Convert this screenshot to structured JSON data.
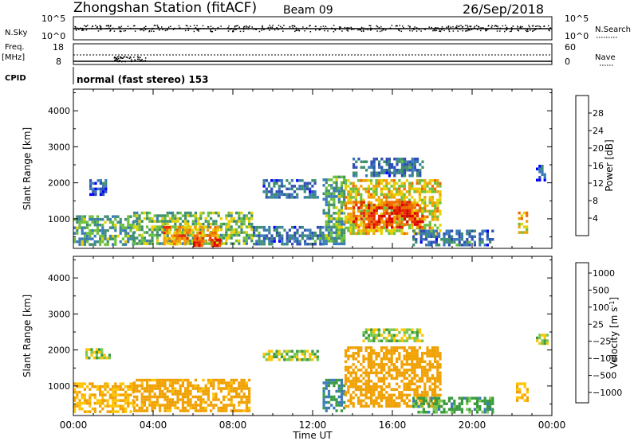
{
  "header": {
    "station": "Zhongshan Station (fitACF)",
    "beam": "Beam 09",
    "date": "26/Sep/2018"
  },
  "strip": {
    "nsky_label": "N.Sky",
    "nsky_ticks": [
      "10^5",
      "10^0"
    ],
    "nsearch_label": "N.Search",
    "nsearch_ticks": [
      "10^5",
      "10^0"
    ],
    "freq_label": "Freq.",
    "freq_unit": "[MHz]",
    "freq_ticks": [
      "18",
      "8"
    ],
    "nave_label": "Nave",
    "nave_ticks": [
      "60",
      "0"
    ],
    "cpid_label": "CPID",
    "cpid_text": "normal (fast stereo) 153"
  },
  "colors": {
    "power": [
      "#0000ff",
      "#2f4fb4",
      "#3a7ab8",
      "#3f8f6e",
      "#6cbf3c",
      "#e8d000",
      "#f0a000",
      "#ee6a00",
      "#e82800",
      "#dd0000"
    ],
    "velocity": [
      "#e80000",
      "#ee5a00",
      "#f0a000",
      "#ffc400",
      "#c8c8c8",
      "#7ac850",
      "#3a9a40",
      "#3a7ab8",
      "#2050b8",
      "#0000dd"
    ]
  },
  "chart_data": [
    {
      "type": "heatmap",
      "name": "power",
      "ylabel": "Slant Range [km]",
      "ylim": [
        180,
        4600
      ],
      "yticks": [
        1000,
        2000,
        3000,
        4000
      ],
      "xticks": [
        "00:00",
        "04:00",
        "08:00",
        "12:00",
        "16:00",
        "20:00",
        "00:00"
      ],
      "colorbar": {
        "label": "Power [dB]",
        "range": [
          0,
          32
        ],
        "ticks": [
          "4",
          "8",
          "12",
          "16",
          "20",
          "24",
          "28"
        ]
      },
      "regions": [
        {
          "t": [
            0.0,
            3.0
          ],
          "r": [
            300,
            1100
          ],
          "level": 12
        },
        {
          "t": [
            0.8,
            1.6
          ],
          "r": [
            1700,
            2100
          ],
          "level": 6
        },
        {
          "t": [
            3.0,
            9.0
          ],
          "r": [
            300,
            1200
          ],
          "level": 14
        },
        {
          "t": [
            4.5,
            7.2
          ],
          "r": [
            300,
            800
          ],
          "level": 22
        },
        {
          "t": [
            6.0,
            7.5
          ],
          "r": [
            250,
            450
          ],
          "level": 28
        },
        {
          "t": [
            9.5,
            12.3
          ],
          "r": [
            1600,
            2100
          ],
          "level": 8
        },
        {
          "t": [
            9.0,
            12.5
          ],
          "r": [
            300,
            800
          ],
          "level": 8
        },
        {
          "t": [
            12.5,
            13.6
          ],
          "r": [
            300,
            2200
          ],
          "level": 12
        },
        {
          "t": [
            13.6,
            18.4
          ],
          "r": [
            600,
            2100
          ],
          "level": 18
        },
        {
          "t": [
            14.0,
            17.5
          ],
          "r": [
            800,
            1500
          ],
          "level": 26
        },
        {
          "t": [
            14.0,
            17.5
          ],
          "r": [
            2200,
            2700
          ],
          "level": 8
        },
        {
          "t": [
            17.0,
            21.0
          ],
          "r": [
            300,
            700
          ],
          "level": 8
        },
        {
          "t": [
            22.3,
            22.8
          ],
          "r": [
            600,
            1200
          ],
          "level": 20
        },
        {
          "t": [
            23.2,
            23.7
          ],
          "r": [
            2100,
            2500
          ],
          "level": 6
        }
      ]
    },
    {
      "type": "heatmap",
      "name": "velocity",
      "ylabel": "Slant Range [km]",
      "ylim": [
        180,
        4600
      ],
      "yticks": [
        1000,
        2000,
        3000,
        4000
      ],
      "xlabel": "Time UT",
      "xticks": [
        "00:00",
        "04:00",
        "08:00",
        "12:00",
        "16:00",
        "20:00",
        "00:00"
      ],
      "colorbar": {
        "label": "Velocity [m s^-1]",
        "ticks": [
          "1000",
          "500",
          "100",
          "25",
          "−25",
          "−100",
          "−500",
          "−1000"
        ]
      },
      "regions": [
        {
          "t": [
            0.0,
            3.0
          ],
          "r": [
            300,
            1100
          ],
          "level": -100
        },
        {
          "t": [
            0.6,
            1.8
          ],
          "r": [
            1750,
            2050
          ],
          "level": 0
        },
        {
          "t": [
            3.0,
            8.8
          ],
          "r": [
            300,
            1200
          ],
          "level": -150
        },
        {
          "t": [
            9.5,
            12.3
          ],
          "r": [
            1700,
            2000
          ],
          "level": 0
        },
        {
          "t": [
            12.5,
            13.6
          ],
          "r": [
            300,
            1200
          ],
          "level": 100
        },
        {
          "t": [
            13.6,
            18.4
          ],
          "r": [
            400,
            2100
          ],
          "level": -200
        },
        {
          "t": [
            14.5,
            17.5
          ],
          "r": [
            2250,
            2600
          ],
          "level": 0
        },
        {
          "t": [
            17.0,
            21.0
          ],
          "r": [
            300,
            700
          ],
          "level": 60
        },
        {
          "t": [
            22.2,
            22.8
          ],
          "r": [
            600,
            1100
          ],
          "level": -100
        },
        {
          "t": [
            23.2,
            23.8
          ],
          "r": [
            2150,
            2450
          ],
          "level": 0
        }
      ]
    }
  ]
}
